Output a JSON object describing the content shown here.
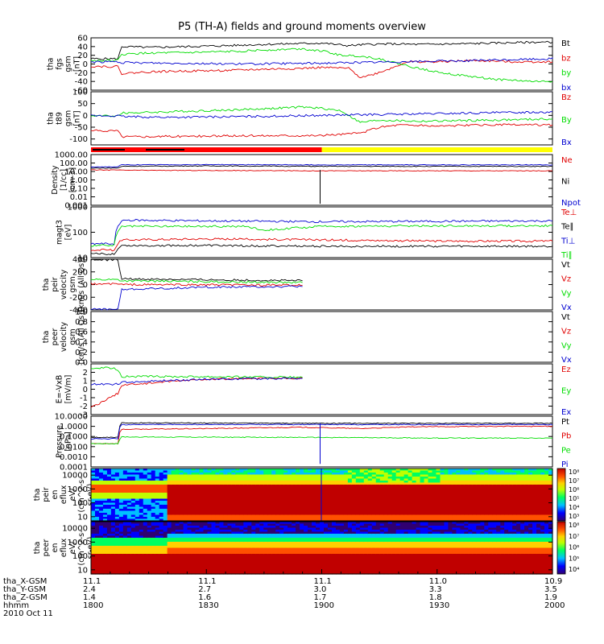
{
  "title": "P5 (TH-A) fields and ground moments overview",
  "colors": {
    "black": "#000000",
    "red": "#e00000",
    "green": "#00dd00",
    "blue": "#0000d0",
    "yellow": "#ffff00",
    "mode_red": "#ff0000"
  },
  "chart_data": [
    {
      "type": "line",
      "id": "fgs",
      "ylabel_lines": [
        "tha",
        "fgs",
        "gsm",
        "[nT]"
      ],
      "ylim": [
        -60,
        60
      ],
      "ticks": [
        "60",
        "40",
        "20",
        "0",
        "-20",
        "-40",
        "-60"
      ],
      "legend": [
        {
          "label": "Bt",
          "color": "#000000"
        },
        {
          "label": "bz",
          "color": "#e00000"
        },
        {
          "label": "by",
          "color": "#00dd00"
        },
        {
          "label": "bx",
          "color": "#0000d0"
        }
      ],
      "series": [
        {
          "name": "Bt",
          "color": "#000000",
          "x": [
            1800,
            1807,
            1808,
            1815,
            1825,
            1835,
            1845,
            1855,
            1900,
            1907,
            1912,
            1918,
            1925,
            1935,
            1945,
            1955,
            2000
          ],
          "y": [
            12,
            12,
            40,
            38,
            40,
            42,
            45,
            47,
            48,
            42,
            45,
            46,
            45,
            46,
            48,
            50,
            50
          ]
        },
        {
          "name": "bz",
          "color": "#e00000",
          "x": [
            1800,
            1807,
            1808,
            1815,
            1825,
            1835,
            1845,
            1855,
            1900,
            1907,
            1910,
            1913,
            1918,
            1922,
            1930,
            1940,
            1950,
            2000
          ],
          "y": [
            -5,
            -6,
            -22,
            -18,
            -16,
            -15,
            -12,
            -10,
            -8,
            -10,
            -30,
            -25,
            -10,
            5,
            5,
            8,
            5,
            5
          ]
        },
        {
          "name": "by",
          "color": "#00dd00",
          "x": [
            1800,
            1807,
            1808,
            1815,
            1825,
            1835,
            1845,
            1855,
            1900,
            1905,
            1910,
            1915,
            1918,
            1925,
            1935,
            1945,
            1955,
            2000
          ],
          "y": [
            8,
            8,
            22,
            25,
            26,
            28,
            32,
            35,
            30,
            20,
            18,
            12,
            5,
            -10,
            -25,
            -35,
            -40,
            -40
          ]
        },
        {
          "name": "bx",
          "color": "#0000d0",
          "x": [
            1800,
            1807,
            1808,
            1820,
            1840,
            1900,
            1920,
            1940,
            1960,
            2000
          ],
          "y": [
            5,
            5,
            3,
            2,
            0,
            2,
            5,
            8,
            12,
            15
          ]
        }
      ]
    },
    {
      "type": "line",
      "id": "t89",
      "ylabel_lines": [
        "tha",
        "t89",
        "gsm",
        "[nT]"
      ],
      "ylim": [
        -125,
        100
      ],
      "ticks": [
        "100",
        "50",
        "0",
        "-50",
        "-100"
      ],
      "tick_values": [
        100,
        50,
        0,
        -50,
        -100
      ],
      "legend": [
        {
          "label": "Bz",
          "color": "#e00000"
        },
        {
          "label": "By",
          "color": "#00dd00"
        },
        {
          "label": "Bx",
          "color": "#0000d0"
        }
      ],
      "series": [
        {
          "name": "Bz",
          "color": "#e00000",
          "x": [
            1800,
            1807,
            1808,
            1830,
            1850,
            1900,
            1905,
            1910,
            1915,
            1920,
            1930,
            1945,
            2000
          ],
          "y": [
            -65,
            -65,
            -90,
            -88,
            -85,
            -85,
            -80,
            -75,
            -50,
            -40,
            -45,
            -40,
            -40
          ]
        },
        {
          "name": "By",
          "color": "#00dd00",
          "x": [
            1800,
            1807,
            1808,
            1820,
            1840,
            1855,
            1900,
            1905,
            1910,
            1915,
            1925,
            1945,
            2000
          ],
          "y": [
            -2,
            -2,
            10,
            15,
            25,
            35,
            30,
            20,
            -30,
            -20,
            -25,
            -20,
            -15
          ]
        },
        {
          "name": "Bx",
          "color": "#0000d0",
          "x": [
            1800,
            1807,
            1808,
            1820,
            1840,
            1900,
            1920,
            1940,
            2000
          ],
          "y": [
            -2,
            -2,
            -5,
            -8,
            -5,
            0,
            5,
            10,
            15
          ]
        }
      ]
    },
    {
      "type": "line",
      "id": "density",
      "ylabel_lines": [
        "Density",
        "[1/cc]",
        "[cm-3]"
      ],
      "ylog": true,
      "ylim": [
        0.001,
        1000
      ],
      "ticks": [
        "1000.00",
        "100.00",
        "10.00",
        "1.00",
        "0.10",
        "0.01",
        "0.001"
      ],
      "tick_values": [
        1000,
        100,
        10,
        1,
        0.1,
        0.01,
        0.001
      ],
      "legend": [
        {
          "label": "Ne",
          "color": "#e00000"
        },
        {
          "label": "Ni",
          "color": "#000000"
        },
        {
          "label": "Npot",
          "color": "#0000d0"
        }
      ],
      "series": [
        {
          "name": "Ne",
          "color": "#e00000",
          "x": [
            1800,
            1807,
            1808,
            1900,
            1930,
            2000
          ],
          "y": [
            15,
            15,
            14,
            12,
            12,
            12
          ]
        },
        {
          "name": "Ni",
          "color": "#000000",
          "x": [
            1800,
            1807,
            1808,
            1830,
            1900,
            1930,
            2000
          ],
          "y": [
            25,
            25,
            40,
            45,
            40,
            40,
            40
          ]
        },
        {
          "name": "Npot",
          "color": "#0000d0",
          "x": [
            1800,
            1807,
            1808,
            1830,
            1900,
            1930,
            2000
          ],
          "y": [
            35,
            35,
            60,
            65,
            60,
            60,
            60
          ]
        }
      ]
    },
    {
      "type": "line",
      "id": "temp",
      "ylabel_lines": [
        "magt3",
        "[eV]"
      ],
      "ylog": true,
      "ylim": [
        10,
        1000
      ],
      "ticks": [
        "1000",
        "100",
        "10"
      ],
      "tick_values": [
        1000,
        100,
        10
      ],
      "legend": [
        {
          "label": "Te⊥",
          "color": "#e00000"
        },
        {
          "label": "Te∥",
          "color": "#000000"
        },
        {
          "label": "Ti⊥",
          "color": "#0000d0"
        },
        {
          "label": "Ti∥",
          "color": "#00dd00"
        }
      ],
      "series": [
        {
          "name": "Te⊥",
          "color": "#e00000",
          "x": [
            1800,
            1806,
            1808,
            1830,
            1900,
            1930,
            2000
          ],
          "y": [
            20,
            20,
            50,
            55,
            50,
            45,
            45
          ]
        },
        {
          "name": "Te∥",
          "color": "#000000",
          "x": [
            1800,
            1806,
            1808,
            1830,
            1900,
            1930,
            2000
          ],
          "y": [
            14,
            14,
            30,
            30,
            28,
            28,
            28
          ]
        },
        {
          "name": "Ti⊥",
          "color": "#0000d0",
          "x": [
            1800,
            1806,
            1808,
            1830,
            1900,
            1930,
            2000
          ],
          "y": [
            35,
            35,
            300,
            280,
            260,
            270,
            280
          ]
        },
        {
          "name": "Ti∥",
          "color": "#00dd00",
          "x": [
            1800,
            1806,
            1808,
            1830,
            1840,
            1845,
            1900,
            1930,
            2000
          ],
          "y": [
            30,
            30,
            170,
            170,
            170,
            120,
            170,
            180,
            180
          ]
        }
      ]
    },
    {
      "type": "line",
      "id": "peir_vel",
      "ylabel_lines": [
        "tha",
        "peir",
        "velocity",
        "gsm",
        "[km/s (All Qs)]"
      ],
      "ylim": [
        -400,
        400
      ],
      "ticks": [
        "400",
        "200",
        "0",
        "-200",
        "-400"
      ],
      "tick_values": [
        400,
        200,
        0,
        -200,
        -400
      ],
      "legend": [
        {
          "label": "Vt",
          "color": "#000000"
        },
        {
          "label": "Vz",
          "color": "#e00000"
        },
        {
          "label": "Vy",
          "color": "#00dd00"
        },
        {
          "label": "Vx",
          "color": "#0000d0"
        }
      ],
      "series": [
        {
          "name": "Vt",
          "color": "#000000",
          "x": [
            1800,
            1807,
            1808,
            1840,
            1855
          ],
          "y": [
            390,
            390,
            90,
            70,
            60
          ]
        },
        {
          "name": "Vz",
          "color": "#e00000",
          "x": [
            1800,
            1807,
            1808,
            1855
          ],
          "y": [
            10,
            10,
            0,
            -10
          ]
        },
        {
          "name": "Vy",
          "color": "#00dd00",
          "x": [
            1800,
            1807,
            1808,
            1855
          ],
          "y": [
            80,
            80,
            60,
            30
          ]
        },
        {
          "name": "Vx",
          "color": "#0000d0",
          "x": [
            1800,
            1807,
            1808,
            1830,
            1855
          ],
          "y": [
            -390,
            -390,
            -80,
            -40,
            -30
          ]
        }
      ]
    },
    {
      "type": "line",
      "id": "peer_vel",
      "ylabel_lines": [
        "tha",
        "peer",
        "velocity",
        "gsm",
        "[km/s (All Qs)]"
      ],
      "ylim": [
        0,
        1
      ],
      "ticks": [
        "1.0",
        "0.8",
        "0.6",
        "0.4",
        "0.2",
        "0.0"
      ],
      "tick_values": [
        1,
        0.8,
        0.6,
        0.4,
        0.2,
        0
      ],
      "legend": [
        {
          "label": "Vt",
          "color": "#000000"
        },
        {
          "label": "Vz",
          "color": "#e00000"
        },
        {
          "label": "Vy",
          "color": "#00dd00"
        },
        {
          "label": "Vx",
          "color": "#0000d0"
        }
      ],
      "series": []
    },
    {
      "type": "line",
      "id": "efield",
      "ylabel_lines": [
        "E=-VxB",
        "[mV/m]"
      ],
      "ylim": [
        -3,
        3
      ],
      "ticks": [
        "2",
        "1",
        "0",
        "-1",
        "-2",
        "-3"
      ],
      "tick_values": [
        2,
        1,
        0,
        -1,
        -2,
        -3
      ],
      "legend": [
        {
          "label": "Ez",
          "color": "#e00000"
        },
        {
          "label": "Ey",
          "color": "#00dd00"
        },
        {
          "label": "Ex",
          "color": "#0000d0"
        }
      ],
      "series": [
        {
          "name": "Ez",
          "color": "#e00000",
          "x": [
            1800,
            1803,
            1807,
            1808,
            1830,
            1855
          ],
          "y": [
            -2.2,
            -1.5,
            -0.5,
            0.5,
            1.2,
            1.3
          ]
        },
        {
          "name": "Ey",
          "color": "#00dd00",
          "x": [
            1800,
            1806,
            1807,
            1808,
            1830,
            1855
          ],
          "y": [
            2.5,
            2.5,
            2.3,
            1.5,
            1.5,
            1.4
          ]
        },
        {
          "name": "Ex",
          "color": "#0000d0",
          "x": [
            1800,
            1807,
            1808,
            1830,
            1855
          ],
          "y": [
            0.6,
            0.6,
            0.8,
            1.2,
            1.3
          ]
        }
      ]
    },
    {
      "type": "line",
      "id": "pressure",
      "ylabel_lines": [
        "Pressure",
        "[nPa]"
      ],
      "ylog": true,
      "ylim": [
        0.0001,
        10
      ],
      "ticks": [
        "10.0000",
        "1.0000",
        "0.1000",
        "0.0100",
        "0.0010",
        "0.0001"
      ],
      "tick_values": [
        10,
        1,
        0.1,
        0.01,
        0.001,
        0.0001
      ],
      "legend": [
        {
          "label": "Pt",
          "color": "#000000"
        },
        {
          "label": "Pb",
          "color": "#e00000"
        },
        {
          "label": "Pe",
          "color": "#00dd00"
        },
        {
          "label": "Pi",
          "color": "#0000d0"
        }
      ],
      "series": [
        {
          "name": "Pt",
          "color": "#000000",
          "x": [
            1800,
            1807,
            1808,
            1900,
            1930,
            2000
          ],
          "y": [
            0.08,
            0.08,
            2.2,
            2,
            2,
            2
          ]
        },
        {
          "name": "Pb",
          "color": "#e00000",
          "x": [
            1800,
            1807,
            1808,
            1830,
            1855,
            1910,
            1925,
            1945,
            2000
          ],
          "y": [
            0.02,
            0.02,
            0.5,
            0.6,
            0.8,
            0.6,
            0.9,
            1,
            1
          ]
        },
        {
          "name": "Pe",
          "color": "#00dd00",
          "x": [
            1800,
            1807,
            1808,
            1900,
            1930,
            2000
          ],
          "y": [
            0.02,
            0.02,
            0.09,
            0.08,
            0.07,
            0.07
          ]
        },
        {
          "name": "Pi",
          "color": "#0000d0",
          "x": [
            1800,
            1807,
            1808,
            1900,
            1930,
            2000
          ],
          "y": [
            0.06,
            0.06,
            1.5,
            1.5,
            1.5,
            1.5
          ]
        }
      ]
    },
    {
      "type": "heatmap",
      "id": "peir_spec",
      "ylabel_lines": [
        "tha",
        "peir",
        "en",
        "eflux",
        "eV/",
        "(cm^2-s-",
        "sr-eV)"
      ],
      "ylog": true,
      "ylim": [
        5,
        30000
      ],
      "ticks": [
        "10000",
        "1000",
        "100",
        "10"
      ],
      "tick_values": [
        10000,
        1000,
        100,
        10
      ],
      "colorbar_ticks": [
        "10⁸",
        "10⁷",
        "10⁶",
        "10⁵",
        "10⁴",
        "10³"
      ]
    },
    {
      "type": "heatmap",
      "id": "peer_spec",
      "ylabel_lines": [
        "tha",
        "peer",
        "en",
        "eflux",
        "eV/",
        "(cm^2-s-",
        "sr-eV)"
      ],
      "ylog": true,
      "ylim": [
        5,
        30000
      ],
      "ticks": [
        "10000",
        "1000",
        "100",
        "10"
      ],
      "tick_values": [
        10000,
        1000,
        100,
        10
      ],
      "colorbar_ticks": [
        "10⁸",
        "10⁷",
        "10⁶",
        "10⁵",
        "10⁴"
      ]
    }
  ],
  "mode_bar": {
    "segments": [
      {
        "from": 1800,
        "to": 1900,
        "color": "#ff0000"
      },
      {
        "from": 1900,
        "to": 2000,
        "color": "#ffff00"
      }
    ]
  },
  "x_axis": {
    "range": [
      1800,
      2000
    ],
    "rows": [
      {
        "label": "tha_X-GSM",
        "values": [
          "11.1",
          "11.1",
          "11.1",
          "11.0",
          "10.9"
        ]
      },
      {
        "label": "tha_Y-GSM",
        "values": [
          "2.4",
          "2.7",
          "3.0",
          "3.3",
          "3.5"
        ]
      },
      {
        "label": "tha_Z-GSM",
        "values": [
          "1.4",
          "1.6",
          "1.7",
          "1.8",
          "1.9"
        ]
      },
      {
        "label": "hhmm",
        "values": [
          "1800",
          "1830",
          "1900",
          "1930",
          "2000"
        ]
      },
      {
        "label": "2010 Oct 11",
        "values": []
      }
    ]
  }
}
